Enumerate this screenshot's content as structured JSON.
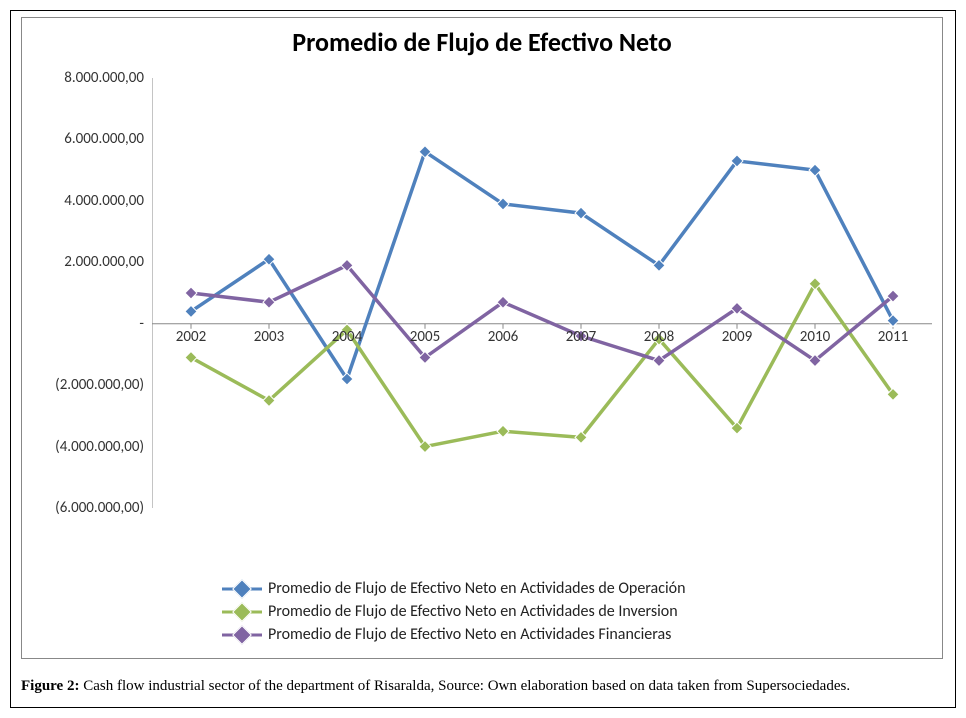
{
  "title": "Promedio de Flujo de Efectivo Neto",
  "caption_label": "Figure 2:",
  "caption_text": " Cash flow industrial sector of the department of Risaralda, Source: Own elaboration based on data taken from Supersociedades.",
  "chart": {
    "type": "line",
    "background_color": "#ffffff",
    "grid_color": "#bfbfbf",
    "axis_color": "#888888",
    "title_fontsize": 26,
    "label_fontsize": 15,
    "legend_fontsize": 16,
    "line_width": 3.5,
    "marker_size": 12,
    "marker_shape": "diamond",
    "ylim": [
      -6000000,
      8000000
    ],
    "ytick_step": 2000000,
    "yticks": [
      {
        "v": 8000000,
        "label": "8.000.000,00"
      },
      {
        "v": 6000000,
        "label": "6.000.000,00"
      },
      {
        "v": 4000000,
        "label": "4.000.000,00"
      },
      {
        "v": 2000000,
        "label": "2.000.000,00"
      },
      {
        "v": 0,
        "label": "-"
      },
      {
        "v": -2000000,
        "label": "(2.000.000,00)"
      },
      {
        "v": -4000000,
        "label": "(4.000.000,00)"
      },
      {
        "v": -6000000,
        "label": "(6.000.000,00)"
      }
    ],
    "categories": [
      "2002",
      "2003",
      "2004",
      "2005",
      "2006",
      "2007",
      "2008",
      "2009",
      "2010",
      "2011"
    ],
    "series": [
      {
        "name": "Promedio de Flujo de Efectivo Neto en Actividades de Operación",
        "color": "#4f81bd",
        "values": [
          400000,
          2100000,
          -1800000,
          5600000,
          3900000,
          3600000,
          1900000,
          5300000,
          5000000,
          100000
        ]
      },
      {
        "name": "Promedio de Flujo de Efectivo Neto en Actividades de Inversion",
        "color": "#9bbb59",
        "values": [
          -1100000,
          -2500000,
          -200000,
          -4000000,
          -3500000,
          -3700000,
          -500000,
          -3400000,
          1300000,
          -2300000
        ]
      },
      {
        "name": "Promedio de Flujo de Efectivo Neto en Actividades Financieras",
        "color": "#8064a2",
        "values": [
          1000000,
          700000,
          1900000,
          -1100000,
          700000,
          -400000,
          -1200000,
          500000,
          -1200000,
          900000
        ]
      }
    ]
  }
}
